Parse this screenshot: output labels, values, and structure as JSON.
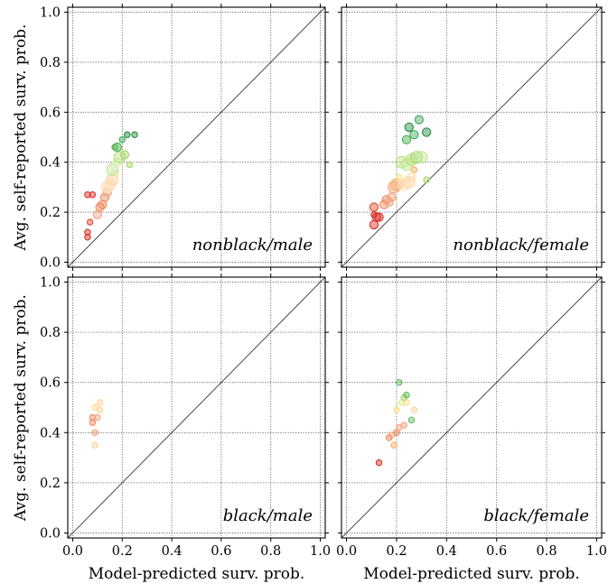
{
  "chart_data": [
    {
      "type": "scatter",
      "panel_label": "nonblack/male",
      "xlabel": "",
      "ylabel": "Avg. self-reported surv. prob.",
      "xlim": [
        -0.02,
        1.02
      ],
      "ylim": [
        -0.02,
        1.02
      ],
      "xticks": [
        "0.0",
        "0.2",
        "0.4",
        "0.6",
        "0.8",
        "1.0"
      ],
      "yticks": [
        "0.0",
        "0.2",
        "0.4",
        "0.6",
        "0.8",
        "1.0"
      ],
      "grid": true,
      "reference_line": "y = x",
      "points": [
        {
          "x": 0.06,
          "y": 0.12,
          "color": "#d73027",
          "size": "small"
        },
        {
          "x": 0.06,
          "y": 0.1,
          "color": "#d73027",
          "size": "small"
        },
        {
          "x": 0.07,
          "y": 0.16,
          "color": "#e34a33",
          "size": "small"
        },
        {
          "x": 0.06,
          "y": 0.27,
          "color": "#d73027",
          "size": "small"
        },
        {
          "x": 0.08,
          "y": 0.27,
          "color": "#d73027",
          "size": "small"
        },
        {
          "x": 0.1,
          "y": 0.19,
          "color": "#f4a582",
          "size": "medium"
        },
        {
          "x": 0.11,
          "y": 0.22,
          "color": "#ef8a62",
          "size": "medium"
        },
        {
          "x": 0.12,
          "y": 0.23,
          "color": "#ef8a62",
          "size": "medium"
        },
        {
          "x": 0.13,
          "y": 0.26,
          "color": "#ef8a62",
          "size": "medium"
        },
        {
          "x": 0.14,
          "y": 0.28,
          "color": "#f4a582",
          "size": "medium"
        },
        {
          "x": 0.15,
          "y": 0.31,
          "color": "#fddbc7",
          "size": "large"
        },
        {
          "x": 0.14,
          "y": 0.3,
          "color": "#fee0b6",
          "size": "large"
        },
        {
          "x": 0.16,
          "y": 0.33,
          "color": "#fdd49e",
          "size": "large"
        },
        {
          "x": 0.17,
          "y": 0.35,
          "color": "#f6e8c3",
          "size": "medium"
        },
        {
          "x": 0.16,
          "y": 0.37,
          "color": "#c2e699",
          "size": "large"
        },
        {
          "x": 0.18,
          "y": 0.4,
          "color": "#d9f0a3",
          "size": "medium"
        },
        {
          "x": 0.19,
          "y": 0.42,
          "color": "#b8e186",
          "size": "large"
        },
        {
          "x": 0.21,
          "y": 0.43,
          "color": "#a6d96a",
          "size": "medium"
        },
        {
          "x": 0.23,
          "y": 0.39,
          "color": "#a6d96a",
          "size": "small"
        },
        {
          "x": 0.17,
          "y": 0.46,
          "color": "#66bd63",
          "size": "small"
        },
        {
          "x": 0.18,
          "y": 0.46,
          "color": "#4daf4a",
          "size": "medium"
        },
        {
          "x": 0.2,
          "y": 0.49,
          "color": "#41ab5d",
          "size": "small"
        },
        {
          "x": 0.22,
          "y": 0.51,
          "color": "#238b45",
          "size": "small"
        },
        {
          "x": 0.25,
          "y": 0.51,
          "color": "#238b45",
          "size": "small"
        }
      ]
    },
    {
      "type": "scatter",
      "panel_label": "nonblack/female",
      "xlabel": "",
      "ylabel": "",
      "xlim": [
        -0.02,
        1.02
      ],
      "ylim": [
        -0.02,
        1.02
      ],
      "xticks": [
        "0.0",
        "0.2",
        "0.4",
        "0.6",
        "0.8",
        "1.0"
      ],
      "yticks": [],
      "grid": true,
      "reference_line": "y = x",
      "points": [
        {
          "x": 0.11,
          "y": 0.15,
          "color": "#d73027",
          "size": "medium"
        },
        {
          "x": 0.12,
          "y": 0.18,
          "color": "#d73027",
          "size": "medium"
        },
        {
          "x": 0.11,
          "y": 0.19,
          "color": "#d73027",
          "size": "small"
        },
        {
          "x": 0.13,
          "y": 0.18,
          "color": "#d73027",
          "size": "medium"
        },
        {
          "x": 0.11,
          "y": 0.22,
          "color": "#e34a33",
          "size": "medium"
        },
        {
          "x": 0.15,
          "y": 0.23,
          "color": "#ef8a62",
          "size": "medium"
        },
        {
          "x": 0.16,
          "y": 0.25,
          "color": "#ef8a62",
          "size": "medium"
        },
        {
          "x": 0.17,
          "y": 0.24,
          "color": "#f4a582",
          "size": "medium"
        },
        {
          "x": 0.18,
          "y": 0.26,
          "color": "#f4a582",
          "size": "medium"
        },
        {
          "x": 0.19,
          "y": 0.3,
          "color": "#f4a582",
          "size": "large"
        },
        {
          "x": 0.2,
          "y": 0.31,
          "color": "#fdae61",
          "size": "large"
        },
        {
          "x": 0.21,
          "y": 0.34,
          "color": "#fee08b",
          "size": "small"
        },
        {
          "x": 0.23,
          "y": 0.31,
          "color": "#fee0b6",
          "size": "large"
        },
        {
          "x": 0.25,
          "y": 0.32,
          "color": "#fdd49e",
          "size": "large"
        },
        {
          "x": 0.26,
          "y": 0.34,
          "color": "#fee0b6",
          "size": "medium"
        },
        {
          "x": 0.27,
          "y": 0.37,
          "color": "#fdae61",
          "size": "small"
        },
        {
          "x": 0.22,
          "y": 0.4,
          "color": "#b8e186",
          "size": "large"
        },
        {
          "x": 0.24,
          "y": 0.39,
          "color": "#c2e699",
          "size": "large"
        },
        {
          "x": 0.25,
          "y": 0.4,
          "color": "#d9f0a3",
          "size": "medium"
        },
        {
          "x": 0.26,
          "y": 0.41,
          "color": "#b8e186",
          "size": "large"
        },
        {
          "x": 0.28,
          "y": 0.42,
          "color": "#a6d96a",
          "size": "large"
        },
        {
          "x": 0.3,
          "y": 0.42,
          "color": "#c2e699",
          "size": "large"
        },
        {
          "x": 0.32,
          "y": 0.33,
          "color": "#a6d96a",
          "size": "small"
        },
        {
          "x": 0.24,
          "y": 0.49,
          "color": "#4daf4a",
          "size": "medium"
        },
        {
          "x": 0.27,
          "y": 0.51,
          "color": "#41ab5d",
          "size": "medium"
        },
        {
          "x": 0.25,
          "y": 0.54,
          "color": "#238b45",
          "size": "medium"
        },
        {
          "x": 0.29,
          "y": 0.57,
          "color": "#41ab5d",
          "size": "medium"
        },
        {
          "x": 0.32,
          "y": 0.52,
          "color": "#238b45",
          "size": "medium"
        }
      ]
    },
    {
      "type": "scatter",
      "panel_label": "black/male",
      "xlabel": "Model-predicted surv. prob.",
      "ylabel": "Avg. self-reported surv. prob.",
      "xlim": [
        -0.02,
        1.02
      ],
      "ylim": [
        -0.02,
        1.02
      ],
      "xticks": [
        "0.0",
        "0.2",
        "0.4",
        "0.6",
        "0.8",
        "1.0"
      ],
      "yticks": [
        "0.0",
        "0.2",
        "0.4",
        "0.6",
        "0.8",
        "1.0"
      ],
      "grid": true,
      "reference_line": "y = x",
      "points": [
        {
          "x": 0.08,
          "y": 0.46,
          "color": "#ef8a62",
          "size": "small"
        },
        {
          "x": 0.08,
          "y": 0.44,
          "color": "#ef8a62",
          "size": "small"
        },
        {
          "x": 0.09,
          "y": 0.4,
          "color": "#f4a582",
          "size": "small"
        },
        {
          "x": 0.09,
          "y": 0.35,
          "color": "#fdd49e",
          "size": "small"
        },
        {
          "x": 0.09,
          "y": 0.5,
          "color": "#fee08b",
          "size": "small"
        },
        {
          "x": 0.1,
          "y": 0.46,
          "color": "#f4a582",
          "size": "small"
        },
        {
          "x": 0.11,
          "y": 0.49,
          "color": "#fdd49e",
          "size": "small"
        },
        {
          "x": 0.11,
          "y": 0.52,
          "color": "#fdd49e",
          "size": "small"
        }
      ]
    },
    {
      "type": "scatter",
      "panel_label": "black/female",
      "xlabel": "Model-predicted surv. prob.",
      "ylabel": "",
      "xlim": [
        -0.02,
        1.02
      ],
      "ylim": [
        -0.02,
        1.02
      ],
      "xticks": [
        "0.0",
        "0.2",
        "0.4",
        "0.6",
        "0.8",
        "1.0"
      ],
      "yticks": [],
      "grid": true,
      "reference_line": "y = x",
      "points": [
        {
          "x": 0.13,
          "y": 0.28,
          "color": "#d73027",
          "size": "small"
        },
        {
          "x": 0.17,
          "y": 0.38,
          "color": "#ef8a62",
          "size": "small"
        },
        {
          "x": 0.18,
          "y": 0.39,
          "color": "#f4a582",
          "size": "small"
        },
        {
          "x": 0.19,
          "y": 0.35,
          "color": "#fdae61",
          "size": "small"
        },
        {
          "x": 0.2,
          "y": 0.4,
          "color": "#ef8a62",
          "size": "small"
        },
        {
          "x": 0.21,
          "y": 0.42,
          "color": "#f4a582",
          "size": "small"
        },
        {
          "x": 0.23,
          "y": 0.43,
          "color": "#f4a582",
          "size": "small"
        },
        {
          "x": 0.2,
          "y": 0.49,
          "color": "#fee08b",
          "size": "small"
        },
        {
          "x": 0.22,
          "y": 0.52,
          "color": "#d9f0a3",
          "size": "small"
        },
        {
          "x": 0.24,
          "y": 0.52,
          "color": "#fee08b",
          "size": "small"
        },
        {
          "x": 0.27,
          "y": 0.49,
          "color": "#fdd49e",
          "size": "small"
        },
        {
          "x": 0.23,
          "y": 0.54,
          "color": "#a6d96a",
          "size": "small"
        },
        {
          "x": 0.24,
          "y": 0.55,
          "color": "#66bd63",
          "size": "small"
        },
        {
          "x": 0.21,
          "y": 0.6,
          "color": "#66bd63",
          "size": "small"
        },
        {
          "x": 0.26,
          "y": 0.45,
          "color": "#66bd63",
          "size": "small"
        }
      ]
    }
  ]
}
